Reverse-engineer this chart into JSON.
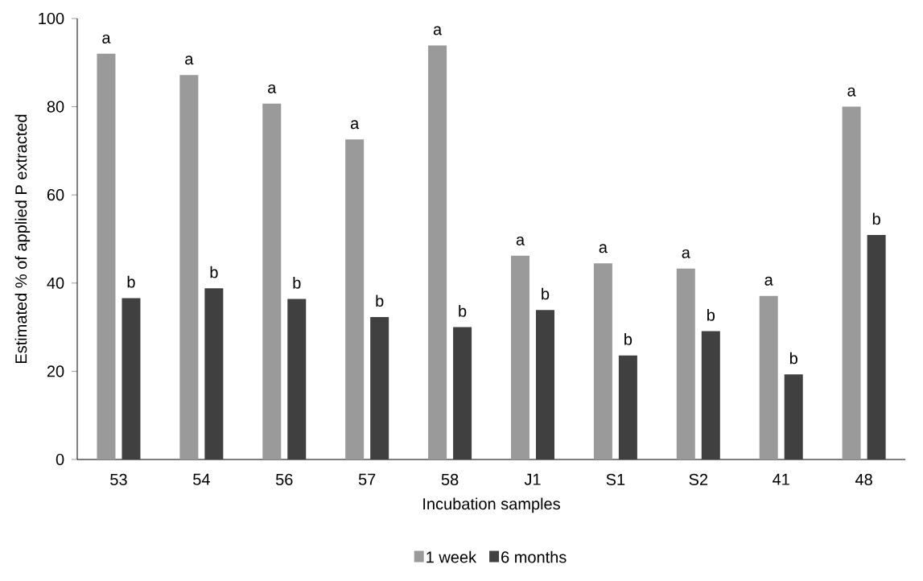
{
  "chart_data": {
    "type": "bar",
    "xlabel": "Incubation samples",
    "ylabel": "Estimated % of applied P extracted",
    "categories": [
      "53",
      "54",
      "56",
      "57",
      "58",
      "J1",
      "S1",
      "S2",
      "41",
      "48"
    ],
    "series": [
      {
        "name": "1 week",
        "color": "#9a9a9a",
        "values": [
          92.0,
          87.2,
          80.7,
          72.6,
          93.9,
          46.2,
          44.5,
          43.3,
          37.1,
          80.0
        ],
        "value_labels": [
          "a",
          "a",
          "a",
          "a",
          "a",
          "a",
          "a",
          "a",
          "a",
          "a"
        ]
      },
      {
        "name": "6 months",
        "color": "#404040",
        "values": [
          36.6,
          38.8,
          36.4,
          32.3,
          30.0,
          33.9,
          23.6,
          29.1,
          19.3,
          50.9
        ],
        "value_labels": [
          "b",
          "b",
          "b",
          "b",
          "b",
          "b",
          "b",
          "b",
          "b",
          "b"
        ]
      }
    ],
    "ylim": [
      0,
      100
    ],
    "yticks": [
      0,
      20,
      40,
      60,
      80,
      100
    ],
    "grid": false,
    "legend": "bottom"
  }
}
